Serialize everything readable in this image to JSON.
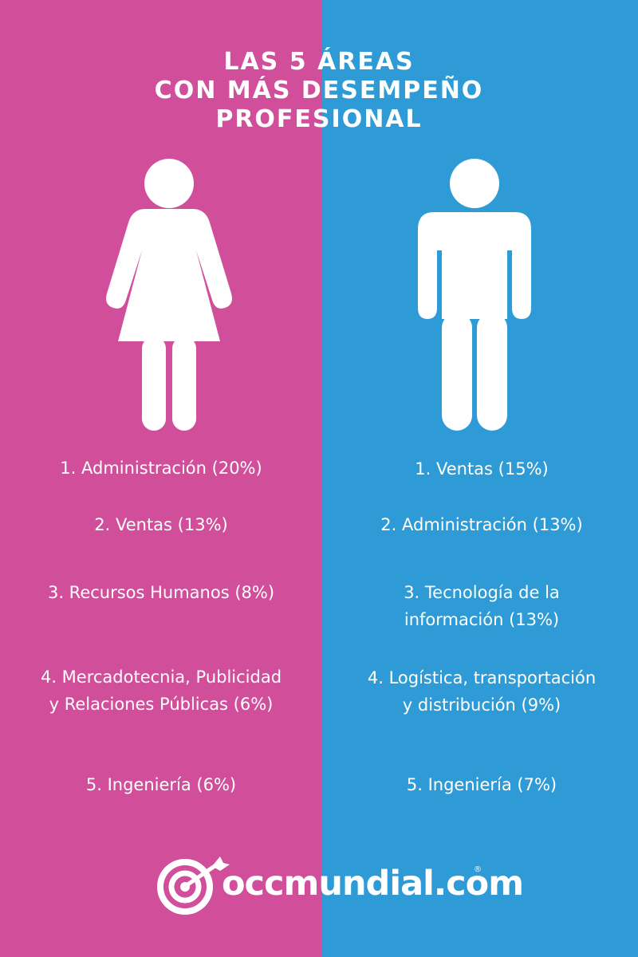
{
  "title": {
    "line1": "LAS 5 ÁREAS",
    "line2": "CON MÁS DESEMPEÑO",
    "line3": "PROFESIONAL"
  },
  "colors": {
    "women": "#d14e9b",
    "men": "#2e9bd6",
    "text": "#ffffff"
  },
  "icons": {
    "women": "woman-icon",
    "men": "man-icon",
    "logo": "target-dart-icon"
  },
  "women": {
    "items": [
      "1. Administración (20%)",
      "2. Ventas (13%)",
      "3. Recursos Humanos (8%)",
      [
        "4. Mercadotecnia, Publicidad",
        "y Relaciones Públicas (6%)"
      ],
      "5. Ingeniería (6%)"
    ]
  },
  "men": {
    "items": [
      "1. Ventas (15%)",
      "2. Administración (13%)",
      [
        "3. Tecnología de la",
        "información (13%)"
      ],
      [
        "4. Logística, transportación",
        "y distribución (9%)"
      ],
      "5. Ingeniería (7%)"
    ]
  },
  "logo": {
    "text": "occmundial.com",
    "registered": "®"
  }
}
